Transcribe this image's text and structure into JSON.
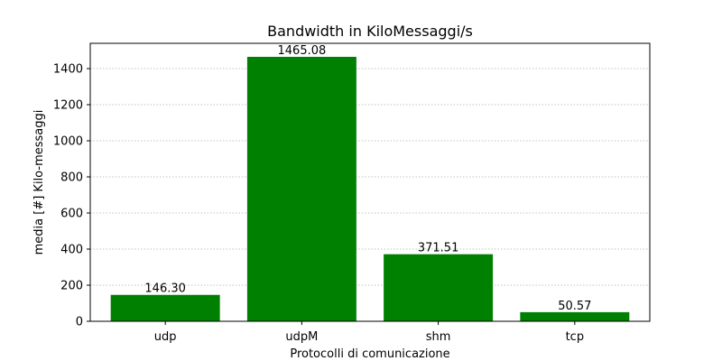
{
  "chart_data": {
    "type": "bar",
    "title": "Bandwidth in KiloMessaggi/s",
    "xlabel": "Protocolli di comunicazione",
    "ylabel": "media [#] Kilo-messaggi",
    "categories": [
      "udp",
      "udpM",
      "shm",
      "tcp"
    ],
    "values": [
      146.3,
      1465.08,
      371.51,
      50.57
    ],
    "value_labels": [
      "146.30",
      "1465.08",
      "371.51",
      "50.57"
    ],
    "ylim": [
      0,
      1540
    ],
    "yticks": [
      0,
      200,
      400,
      600,
      800,
      1000,
      1200,
      1400
    ],
    "bar_color": "#008000",
    "grid": "y-dotted",
    "legend": "none"
  }
}
